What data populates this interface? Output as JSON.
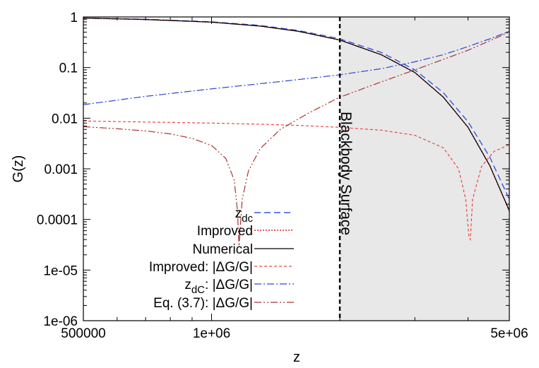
{
  "chart_data": {
    "type": "line",
    "xlabel": "z",
    "ylabel": "G(z)",
    "xscale": "log",
    "yscale": "log",
    "xlim": [
      500000,
      5000000
    ],
    "ylim": [
      1e-06,
      1
    ],
    "x_ticks": [
      {
        "value": 500000,
        "label": "500000"
      },
      {
        "value": 1000000,
        "label": "1e+06"
      },
      {
        "value": 5000000,
        "label": "5e+06"
      }
    ],
    "y_ticks": [
      {
        "value": 1,
        "label": "1"
      },
      {
        "value": 0.1,
        "label": "0.1"
      },
      {
        "value": 0.01,
        "label": "0.01"
      },
      {
        "value": 0.001,
        "label": "0.001"
      },
      {
        "value": 0.0001,
        "label": "0.0001"
      },
      {
        "value": 1e-05,
        "label": "1e-05"
      },
      {
        "value": 1e-06,
        "label": "1e-06"
      }
    ],
    "shaded_region": {
      "x_start": 2000000,
      "x_end": 5000000,
      "color": "#e8e8e8"
    },
    "vertical_line": {
      "x": 2000000,
      "label": "Blackbody Surface"
    },
    "legend_position": "bottom-left",
    "series": [
      {
        "name": "z_dc",
        "name_main": "z",
        "name_sub": "dc",
        "color": "#3355dd",
        "dash": "9,5",
        "width": 1.4,
        "x": [
          500000,
          700000,
          1000000,
          1300000,
          1600000,
          2000000,
          2500000,
          3000000,
          3500000,
          4000000,
          4500000,
          5000000
        ],
        "y": [
          0.95,
          0.9,
          0.8,
          0.68,
          0.54,
          0.37,
          0.2,
          0.09,
          0.032,
          0.0085,
          0.0017,
          0.00025
        ]
      },
      {
        "name": "Improved",
        "color": "#dd2222",
        "dash": "2,2",
        "width": 1.6,
        "x": [
          500000,
          700000,
          1000000,
          1300000,
          1600000,
          2000000,
          2500000,
          3000000,
          3500000,
          4000000,
          4500000,
          5000000
        ],
        "y": [
          0.95,
          0.89,
          0.79,
          0.66,
          0.52,
          0.35,
          0.18,
          0.08,
          0.026,
          0.0066,
          0.00115,
          0.000145
        ]
      },
      {
        "name": "Numerical",
        "color": "#000000",
        "dash": "",
        "width": 1.2,
        "x": [
          500000,
          700000,
          1000000,
          1300000,
          1600000,
          2000000,
          2500000,
          3000000,
          3500000,
          4000000,
          4500000,
          5000000
        ],
        "y": [
          0.95,
          0.89,
          0.79,
          0.66,
          0.52,
          0.35,
          0.18,
          0.08,
          0.026,
          0.0066,
          0.00115,
          0.00015
        ]
      },
      {
        "name": "Improved: |ΔG/G|",
        "name_main": "Improved: |ΔG/G|",
        "color": "#ee4444",
        "dash": "4,3",
        "width": 1.2,
        "x": [
          500000,
          700000,
          1000000,
          1300000,
          1600000,
          2000000,
          2500000,
          3000000,
          3500000,
          3800000,
          3950000,
          4020000,
          4050000,
          4100000,
          4300000,
          4600000,
          5000000
        ],
        "y": [
          0.0088,
          0.0084,
          0.008,
          0.0076,
          0.0072,
          0.0066,
          0.0058,
          0.0046,
          0.0026,
          0.001,
          0.00025,
          4.5e-05,
          4e-05,
          0.00025,
          0.0011,
          0.0022,
          0.003
        ]
      },
      {
        "name": "z_dC: |ΔG/G|",
        "name_main": "z",
        "name_sub": "dC",
        "name_tail": ": |ΔG/G|",
        "color": "#3344cc",
        "dash": "10,3,2,3",
        "width": 1.2,
        "x": [
          500000,
          700000,
          1000000,
          1300000,
          1600000,
          2000000,
          2500000,
          3000000,
          3500000,
          4000000,
          4500000,
          5000000
        ],
        "y": [
          0.0185,
          0.027,
          0.038,
          0.048,
          0.058,
          0.072,
          0.095,
          0.13,
          0.18,
          0.26,
          0.37,
          0.52
        ]
      },
      {
        "name": "Eq. (3.7): |ΔG/G|",
        "name_main": "Eq. (3.7): |ΔG/G|",
        "color": "#aa3333",
        "dash": "10,3,2,3,2,3",
        "width": 1.2,
        "x": [
          500000,
          600000,
          700000,
          800000,
          900000,
          1000000,
          1080000,
          1130000,
          1150000,
          1160000,
          1180000,
          1220000,
          1300000,
          1450000,
          1700000,
          2000000,
          2500000,
          3000000,
          4000000,
          5000000
        ],
        "y": [
          0.0068,
          0.0062,
          0.0056,
          0.0049,
          0.004,
          0.0029,
          0.0016,
          0.0006,
          0.00015,
          3e-05,
          0.00025,
          0.0009,
          0.0025,
          0.006,
          0.013,
          0.026,
          0.052,
          0.09,
          0.22,
          0.5
        ]
      }
    ]
  }
}
